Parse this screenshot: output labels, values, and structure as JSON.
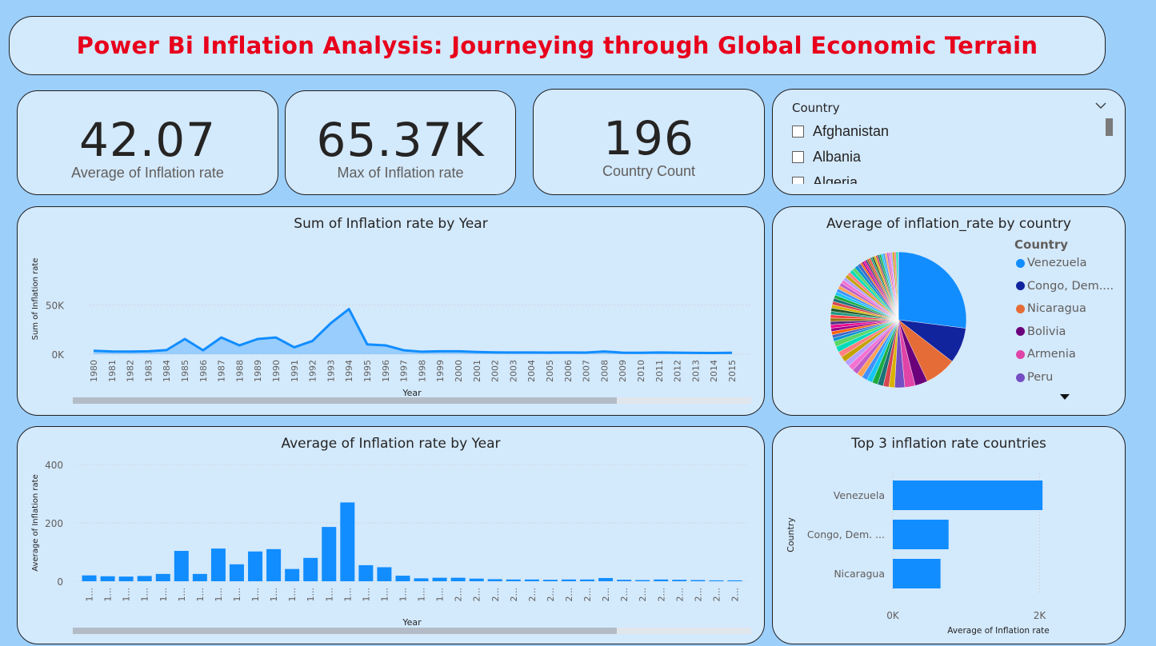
{
  "title": "Power Bi Inflation Analysis: Journeying through Global Economic Terrain",
  "kpis": [
    {
      "value": "42.07",
      "label": "Average of Inflation rate"
    },
    {
      "value": "65.37K",
      "label": "Max of Inflation rate"
    },
    {
      "value": "196",
      "label": "Country Count"
    }
  ],
  "slicer": {
    "label": "Country",
    "items": [
      "Afghanistan",
      "Albania",
      "Algeria"
    ]
  },
  "colors": {
    "accent": "#118dff",
    "title": "#e8001c",
    "background": "#9dcffb",
    "card": "#d3e9fc"
  },
  "chart_data": [
    {
      "type": "area",
      "title": "Sum of Inflation rate by Year",
      "xlabel": "Year",
      "ylabel": "Sum of Inflation rate",
      "yticks": [
        "0K",
        "50K"
      ],
      "ylim": [
        0,
        75000
      ],
      "x": [
        "1980",
        "1981",
        "1982",
        "1983",
        "1984",
        "1985",
        "1986",
        "1987",
        "1988",
        "1989",
        "1990",
        "1991",
        "1992",
        "1993",
        "1994",
        "1995",
        "1996",
        "1997",
        "1998",
        "1999",
        "2000",
        "2001",
        "2002",
        "2003",
        "2004",
        "2005",
        "2006",
        "2007",
        "2008",
        "2009",
        "2010",
        "2011",
        "2012",
        "2013",
        "2014",
        "2015"
      ],
      "values": [
        3500,
        2800,
        2600,
        3000,
        4200,
        15500,
        4000,
        17000,
        9000,
        15500,
        17000,
        7000,
        13500,
        31500,
        46000,
        10000,
        9000,
        4000,
        2500,
        3000,
        3000,
        2200,
        1800,
        1700,
        1700,
        1600,
        1700,
        1600,
        2800,
        1500,
        1400,
        1700,
        1500,
        1300,
        1200,
        1400
      ]
    },
    {
      "type": "bar",
      "title": "Average of Inflation rate by Year",
      "xlabel": "Year",
      "ylabel": "Average of Inflation rate",
      "yticks": [
        "0",
        "200",
        "400"
      ],
      "ylim": [
        0,
        400
      ],
      "categories": [
        "1...",
        "1...",
        "1...",
        "1...",
        "1...",
        "1...",
        "1...",
        "1...",
        "1...",
        "1...",
        "1...",
        "1...",
        "1...",
        "1...",
        "1...",
        "1...",
        "1...",
        "1...",
        "1...",
        "1...",
        "2...",
        "2...",
        "2...",
        "2...",
        "2...",
        "2...",
        "2...",
        "2...",
        "2...",
        "2...",
        "2...",
        "2...",
        "2...",
        "2...",
        "2...",
        "2..."
      ],
      "values": [
        20,
        17,
        16,
        18,
        25,
        104,
        25,
        112,
        58,
        102,
        110,
        42,
        80,
        186,
        270,
        55,
        48,
        19,
        10,
        12,
        12,
        9,
        7,
        6,
        6,
        5,
        6,
        6,
        11,
        5,
        4,
        6,
        5,
        4,
        3,
        3
      ]
    },
    {
      "type": "pie",
      "title": "Average of inflation_rate by country",
      "legend_title": "Country",
      "legend": [
        {
          "name": "Venezuela",
          "color": "#118dff"
        },
        {
          "name": "Congo, Dem....",
          "color": "#12239e"
        },
        {
          "name": "Nicaragua",
          "color": "#e66c37"
        },
        {
          "name": "Bolivia",
          "color": "#6b007b"
        },
        {
          "name": "Armenia",
          "color": "#e044a7"
        },
        {
          "name": "Peru",
          "color": "#744ec2"
        }
      ],
      "slices": [
        {
          "name": "Venezuela",
          "value": 2040,
          "color": "#118dff"
        },
        {
          "name": "Congo, Dem....",
          "value": 760,
          "color": "#12239e"
        },
        {
          "name": "Nicaragua",
          "value": 650,
          "color": "#e66c37"
        },
        {
          "name": "Bolivia",
          "value": 290,
          "color": "#6b007b"
        },
        {
          "name": "Armenia",
          "value": 240,
          "color": "#e044a7"
        },
        {
          "name": "Peru",
          "value": 230,
          "color": "#744ec2"
        }
      ]
    },
    {
      "type": "bar",
      "orientation": "horizontal",
      "title": "Top 3 inflation rate countries",
      "xlabel": "Average of Inflation rate",
      "ylabel": "Country",
      "xticks": [
        "0K",
        "2K"
      ],
      "xlim": [
        0,
        2300
      ],
      "categories": [
        "Venezuela",
        "Congo, Dem. ...",
        "Nicaragua"
      ],
      "values": [
        2040,
        760,
        650
      ]
    }
  ]
}
